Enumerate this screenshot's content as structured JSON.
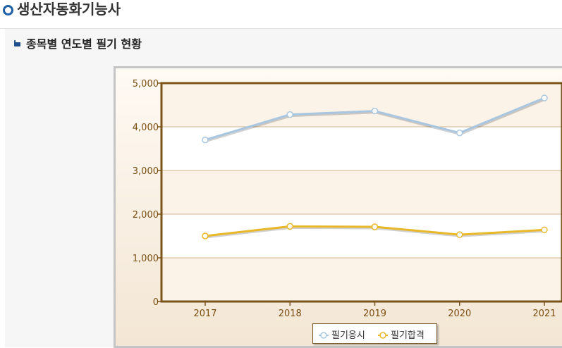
{
  "page": {
    "title": "생산자동화기능사",
    "section_title": "종목별 연도별 필기 현황"
  },
  "chart_data": {
    "type": "line",
    "title": "",
    "xlabel": "",
    "ylabel": "",
    "x": [
      "2017",
      "2018",
      "2019",
      "2020",
      "2021"
    ],
    "ylim": [
      0,
      5000
    ],
    "yticks": [
      "0",
      "1,000",
      "2,000",
      "3,000",
      "4,000",
      "5,000"
    ],
    "grid": true,
    "legend": "bottom-center",
    "series": [
      {
        "name": "필기응시",
        "values": [
          3700,
          4280,
          4360,
          3860,
          4660
        ],
        "color": "#a9c6e0"
      },
      {
        "name": "필기합격",
        "values": [
          1500,
          1720,
          1710,
          1530,
          1640
        ],
        "color": "#e8b828"
      }
    ]
  }
}
